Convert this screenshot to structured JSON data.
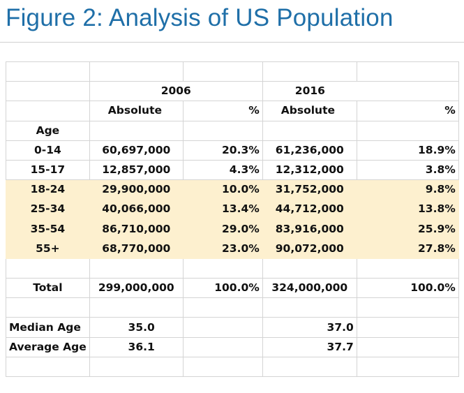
{
  "figure": {
    "title": "Figure 2: Analysis of US Population"
  },
  "table": {
    "year_headers": [
      "2006",
      "2016"
    ],
    "sub_headers": {
      "absolute": "Absolute",
      "percent": "%"
    },
    "age_label": "Age",
    "rows": [
      {
        "age": "0-14",
        "abs2006": "60,697,000",
        "pct2006": "20.3%",
        "abs2016": "61,236,000",
        "pct2016": "18.9%",
        "highlight": false
      },
      {
        "age": "15-17",
        "abs2006": "12,857,000",
        "pct2006": "4.3%",
        "abs2016": "12,312,000",
        "pct2016": "3.8%",
        "highlight": false
      },
      {
        "age": "18-24",
        "abs2006": "29,900,000",
        "pct2006": "10.0%",
        "abs2016": "31,752,000",
        "pct2016": "9.8%",
        "highlight": true
      },
      {
        "age": "25-34",
        "abs2006": "40,066,000",
        "pct2006": "13.4%",
        "abs2016": "44,712,000",
        "pct2016": "13.8%",
        "highlight": true
      },
      {
        "age": "35-54",
        "abs2006": "86,710,000",
        "pct2006": "29.0%",
        "abs2016": "83,916,000",
        "pct2016": "25.9%",
        "highlight": true
      },
      {
        "age": "55+",
        "abs2006": "68,770,000",
        "pct2006": "23.0%",
        "abs2016": "90,072,000",
        "pct2016": "27.8%",
        "highlight": true
      }
    ],
    "total": {
      "label": "Total",
      "abs2006": "299,000,000",
      "pct2006": "100.0%",
      "abs2016": "324,000,000",
      "pct2016": "100.0%"
    },
    "median": {
      "label": "Median Age",
      "v2006": "35.0",
      "v2016": "37.0"
    },
    "average": {
      "label": "Average Age",
      "v2006": "36.1",
      "v2016": "37.7"
    }
  },
  "colors": {
    "title": "#1f6fa8",
    "highlight": "#fdf0cf",
    "grid": "#d4d4d4"
  }
}
